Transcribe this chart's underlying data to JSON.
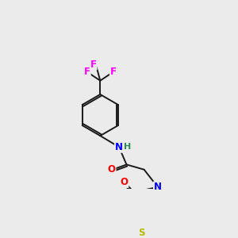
{
  "bg_color": "#ebebeb",
  "bond_color": "#1a1a1a",
  "atom_colors": {
    "N": "#0000ff",
    "O": "#ff0000",
    "S": "#b8b800",
    "F": "#ff00ff",
    "H": "#2e8b57",
    "C": "#1a1a1a"
  },
  "figsize": [
    3.0,
    3.0
  ],
  "dpi": 100
}
